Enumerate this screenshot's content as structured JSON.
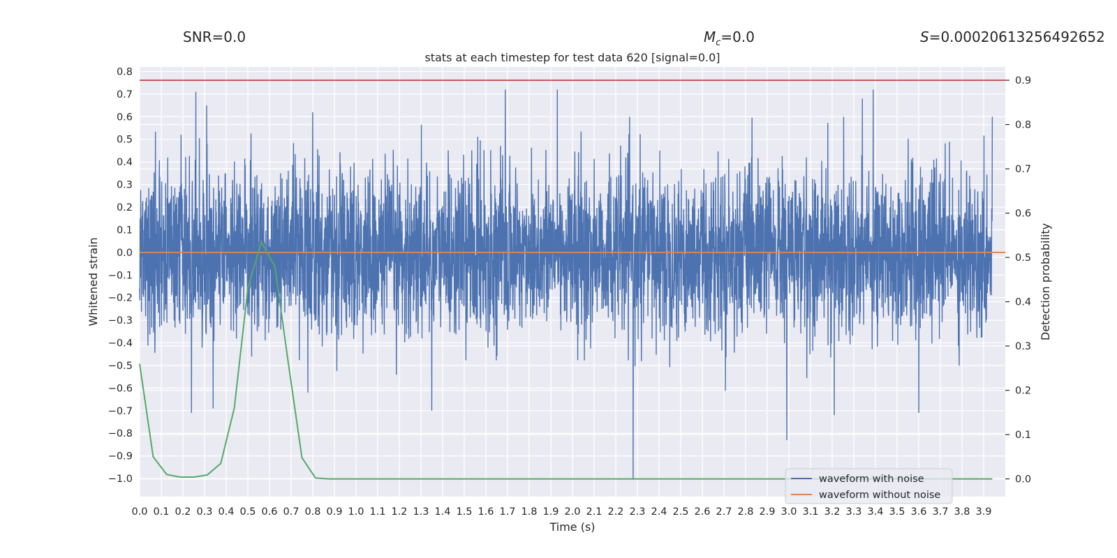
{
  "header": {
    "snr_label": "SNR=0.0",
    "mc_symbol": "M",
    "mc_subscript": "c",
    "mc_value": "=0.0",
    "s_symbol": "S",
    "s_value": "=0.00020613256492652"
  },
  "chart_data": {
    "type": "line",
    "title": "stats at each timestep for test data 620 [signal=0.0]",
    "xlabel": "Time (s)",
    "ylabel": "Whitened strain",
    "ylabel_right": "Detection probability",
    "xlim": [
      0.0,
      4.0
    ],
    "ylim": [
      -1.08,
      0.82
    ],
    "ylim_right": [
      -0.04,
      0.93
    ],
    "x_ticks": [
      "0.0",
      "0.1",
      "0.2",
      "0.3",
      "0.4",
      "0.5",
      "0.6",
      "0.7",
      "0.8",
      "0.9",
      "1.0",
      "1.1",
      "1.2",
      "1.3",
      "1.4",
      "1.5",
      "1.6",
      "1.7",
      "1.8",
      "1.9",
      "2.0",
      "2.1",
      "2.2",
      "2.3",
      "2.4",
      "2.5",
      "2.6",
      "2.7",
      "2.8",
      "2.9",
      "3.0",
      "3.1",
      "3.2",
      "3.3",
      "3.4",
      "3.5",
      "3.6",
      "3.7",
      "3.8",
      "3.9"
    ],
    "y_ticks": [
      "0.8",
      "0.7",
      "0.6",
      "0.5",
      "0.4",
      "0.3",
      "0.2",
      "0.1",
      "0.0",
      "−0.1",
      "−0.2",
      "−0.3",
      "−0.4",
      "−0.5",
      "−0.6",
      "−0.7",
      "−0.8",
      "−0.9",
      "−1.0"
    ],
    "y_ticks_right": [
      "0.9",
      "0.8",
      "0.7",
      "0.6",
      "0.5",
      "0.4",
      "0.3",
      "0.2",
      "0.1",
      "0.0"
    ],
    "grid": true,
    "legend_position": "bottom-right",
    "colors": {
      "background": "#eaeaf2",
      "grid": "#ffffff",
      "noisy": "#4c72b0",
      "clean": "#dd8452",
      "probability": "#55a868",
      "threshold": "#c44e52"
    },
    "series": [
      {
        "name": "waveform with noise",
        "axis": "left",
        "generated": true,
        "samples": 4096,
        "typical_amplitude": 0.18,
        "peaks": [
          {
            "x": 0.26,
            "y": 0.71
          },
          {
            "x": 0.31,
            "y": 0.65
          },
          {
            "x": 0.8,
            "y": 0.62
          },
          {
            "x": 1.69,
            "y": 0.72
          },
          {
            "x": 1.93,
            "y": 0.72
          },
          {
            "x": 3.39,
            "y": 0.72
          },
          {
            "x": 3.34,
            "y": 0.68
          },
          {
            "x": 3.94,
            "y": 0.6
          },
          {
            "x": 2.28,
            "y": -1.0
          },
          {
            "x": 2.99,
            "y": -0.83
          },
          {
            "x": 0.24,
            "y": -0.71
          },
          {
            "x": 0.34,
            "y": -0.69
          },
          {
            "x": 1.35,
            "y": -0.7
          },
          {
            "x": 3.21,
            "y": -0.72
          },
          {
            "x": 3.6,
            "y": -0.71
          }
        ]
      },
      {
        "name": "waveform without noise",
        "axis": "left",
        "x": [
          0.0,
          4.0
        ],
        "y": [
          0.0,
          0.0
        ]
      },
      {
        "name": "",
        "axis": "right",
        "x": [
          0.0,
          0.0625,
          0.125,
          0.1875,
          0.25,
          0.3125,
          0.375,
          0.4375,
          0.5,
          0.5625,
          0.625,
          0.6875,
          0.75,
          0.8125,
          0.875,
          0.9375,
          1.5,
          2.0,
          3.0,
          3.94
        ],
        "y": [
          0.26,
          0.05,
          0.01,
          0.004,
          0.004,
          0.009,
          0.035,
          0.16,
          0.43,
          0.535,
          0.48,
          0.26,
          0.048,
          0.002,
          0.0,
          0.0,
          0.0,
          0.0,
          0.0,
          0.0
        ]
      },
      {
        "name": "",
        "axis": "right",
        "x": [
          0.0,
          4.0
        ],
        "y": [
          0.9,
          0.9
        ]
      }
    ]
  }
}
